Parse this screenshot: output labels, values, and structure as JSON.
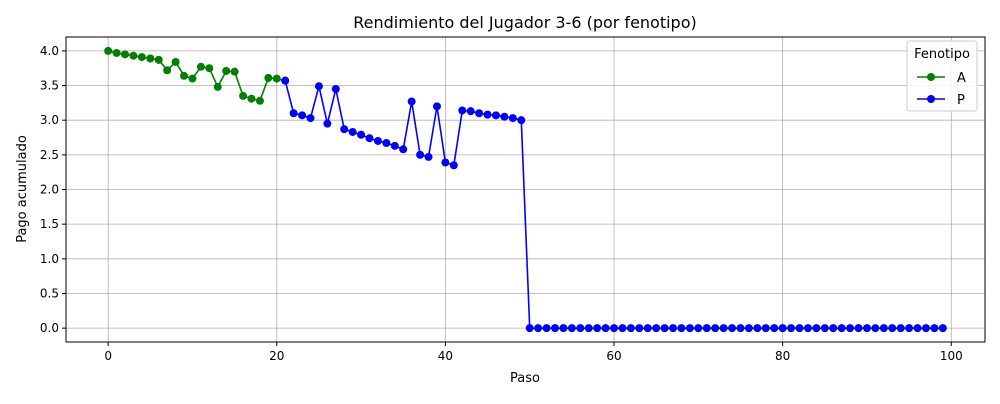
{
  "chart_data": {
    "type": "line",
    "title": "Rendimiento del Jugador 3-6 (por fenotipo)",
    "xlabel": "Paso",
    "ylabel": "Pago acumulado",
    "xlim": [
      -5,
      104
    ],
    "ylim": [
      -0.2,
      4.2
    ],
    "xticks": [
      0,
      20,
      40,
      60,
      80,
      100
    ],
    "yticks": [
      0.0,
      0.5,
      1.0,
      1.5,
      2.0,
      2.5,
      3.0,
      3.5,
      4.0
    ],
    "xtick_labels": [
      "0",
      "20",
      "40",
      "60",
      "80",
      "100"
    ],
    "ytick_labels": [
      "0.0",
      "0.5",
      "1.0",
      "1.5",
      "2.0",
      "2.5",
      "3.0",
      "3.5",
      "4.0"
    ],
    "grid": true,
    "legend": {
      "title": "Fenotipo",
      "placement": "top-right"
    },
    "series": [
      {
        "name": "A",
        "color": "#008000",
        "x": [
          0,
          1,
          2,
          3,
          4,
          5,
          6,
          7,
          8,
          9,
          10,
          11,
          12,
          13,
          14,
          15,
          16,
          17,
          18,
          19,
          20,
          21
        ],
        "values": [
          4.0,
          3.97,
          3.95,
          3.93,
          3.91,
          3.89,
          3.87,
          3.72,
          3.84,
          3.64,
          3.6,
          3.77,
          3.75,
          3.48,
          3.71,
          3.7,
          3.35,
          3.31,
          3.28,
          3.61,
          3.6,
          3.57
        ]
      },
      {
        "name": "P",
        "color": "#0000ff",
        "x": [
          21,
          22,
          23,
          24,
          25,
          26,
          27,
          28,
          29,
          30,
          31,
          32,
          33,
          34,
          35,
          36,
          37,
          38,
          39,
          40,
          41,
          42,
          43,
          44,
          45,
          46,
          47,
          48,
          49,
          50,
          51,
          52,
          53,
          54,
          55,
          56,
          57,
          58,
          59,
          60,
          61,
          62,
          63,
          64,
          65,
          66,
          67,
          68,
          69,
          70,
          71,
          72,
          73,
          74,
          75,
          76,
          77,
          78,
          79,
          80,
          81,
          82,
          83,
          84,
          85,
          86,
          87,
          88,
          89,
          90,
          91,
          92,
          93,
          94,
          95,
          96,
          97,
          98,
          99
        ],
        "values": [
          3.57,
          3.1,
          3.07,
          3.03,
          3.49,
          2.95,
          3.45,
          2.87,
          2.83,
          2.79,
          2.74,
          2.7,
          2.67,
          2.63,
          2.58,
          3.27,
          2.5,
          2.47,
          3.2,
          2.39,
          2.35,
          3.14,
          3.13,
          3.1,
          3.08,
          3.07,
          3.05,
          3.03,
          3.0,
          0,
          0,
          0,
          0,
          0,
          0,
          0,
          0,
          0,
          0,
          0,
          0,
          0,
          0,
          0,
          0,
          0,
          0,
          0,
          0,
          0,
          0,
          0,
          0,
          0,
          0,
          0,
          0,
          0,
          0,
          0,
          0,
          0,
          0,
          0,
          0,
          0,
          0,
          0,
          0,
          0,
          0,
          0,
          0,
          0,
          0,
          0,
          0,
          0,
          0
        ]
      }
    ]
  }
}
